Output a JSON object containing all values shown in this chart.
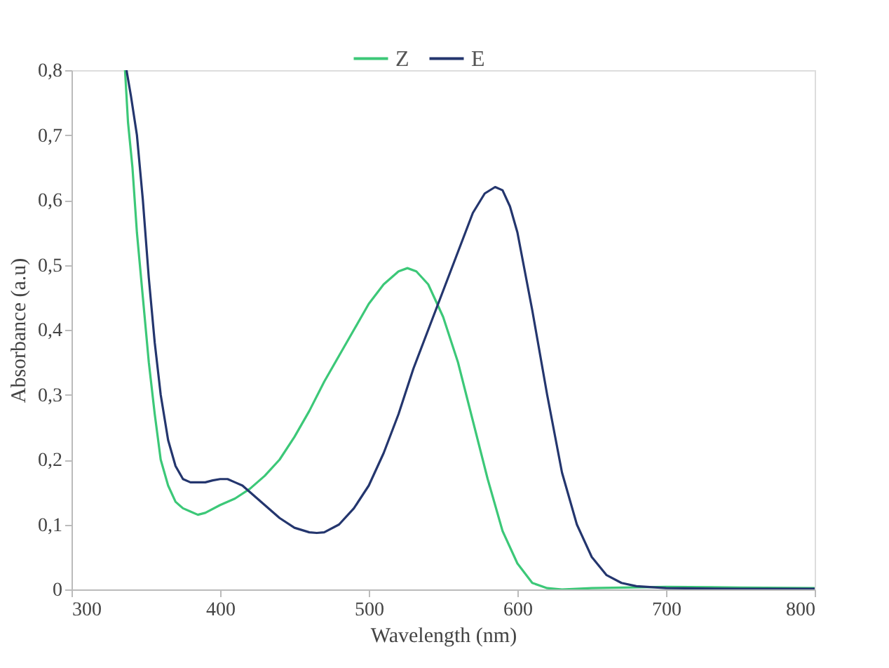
{
  "chart_data": {
    "type": "line",
    "xlabel": "Wavelength (nm)",
    "ylabel": "Absorbance (a.u)",
    "xlim": [
      300,
      800
    ],
    "xticks": [
      300,
      400,
      500,
      600,
      700,
      800
    ],
    "ylim": [
      0,
      0.8
    ],
    "yticks": [
      0,
      {
        "value": 0.1,
        "label": "0,1"
      },
      {
        "value": 0.2,
        "label": "0,2"
      },
      {
        "value": 0.3,
        "label": "0,3"
      },
      {
        "value": 0.4,
        "label": "0,4"
      },
      {
        "value": 0.5,
        "label": "0,5"
      },
      {
        "value": 0.6,
        "label": "0,6"
      },
      {
        "value": 0.7,
        "label": "0,7"
      },
      {
        "value": 0.8,
        "label": "0,8"
      }
    ],
    "grid": false,
    "legend": "top",
    "line_style": "solid",
    "marker": "none",
    "series": [
      {
        "name": "Z",
        "color": "#3cc878",
        "x": [
          336,
          338,
          341,
          344,
          348,
          352,
          356,
          360,
          365,
          370,
          375,
          380,
          385,
          390,
          400,
          410,
          420,
          430,
          440,
          450,
          460,
          470,
          480,
          490,
          500,
          510,
          520,
          526,
          532,
          540,
          550,
          560,
          570,
          580,
          590,
          600,
          610,
          620,
          630,
          650,
          700,
          750,
          800
        ],
        "values": [
          0.8,
          0.72,
          0.65,
          0.55,
          0.45,
          0.35,
          0.27,
          0.2,
          0.16,
          0.135,
          0.125,
          0.12,
          0.115,
          0.118,
          0.13,
          0.14,
          0.155,
          0.175,
          0.2,
          0.235,
          0.275,
          0.32,
          0.36,
          0.4,
          0.44,
          0.47,
          0.49,
          0.495,
          0.49,
          0.47,
          0.42,
          0.35,
          0.26,
          0.17,
          0.09,
          0.04,
          0.01,
          0.002,
          0,
          0.002,
          0.004,
          0.003,
          0.002
        ]
      },
      {
        "name": "E",
        "color": "#24366e",
        "x": [
          337,
          340,
          344,
          348,
          352,
          356,
          360,
          365,
          370,
          375,
          380,
          385,
          390,
          395,
          400,
          405,
          410,
          415,
          420,
          430,
          440,
          450,
          460,
          465,
          470,
          480,
          490,
          500,
          510,
          520,
          530,
          540,
          550,
          560,
          570,
          578,
          585,
          590,
          595,
          600,
          605,
          610,
          620,
          630,
          640,
          650,
          660,
          670,
          680,
          700,
          750,
          800
        ],
        "values": [
          0.8,
          0.76,
          0.7,
          0.6,
          0.48,
          0.38,
          0.3,
          0.23,
          0.19,
          0.17,
          0.165,
          0.165,
          0.165,
          0.168,
          0.17,
          0.17,
          0.165,
          0.16,
          0.15,
          0.13,
          0.11,
          0.095,
          0.088,
          0.087,
          0.088,
          0.1,
          0.125,
          0.16,
          0.21,
          0.27,
          0.34,
          0.4,
          0.46,
          0.52,
          0.58,
          0.61,
          0.62,
          0.615,
          0.59,
          0.55,
          0.49,
          0.43,
          0.3,
          0.18,
          0.1,
          0.05,
          0.022,
          0.01,
          0.005,
          0.002,
          0.001,
          0.001
        ]
      }
    ]
  }
}
